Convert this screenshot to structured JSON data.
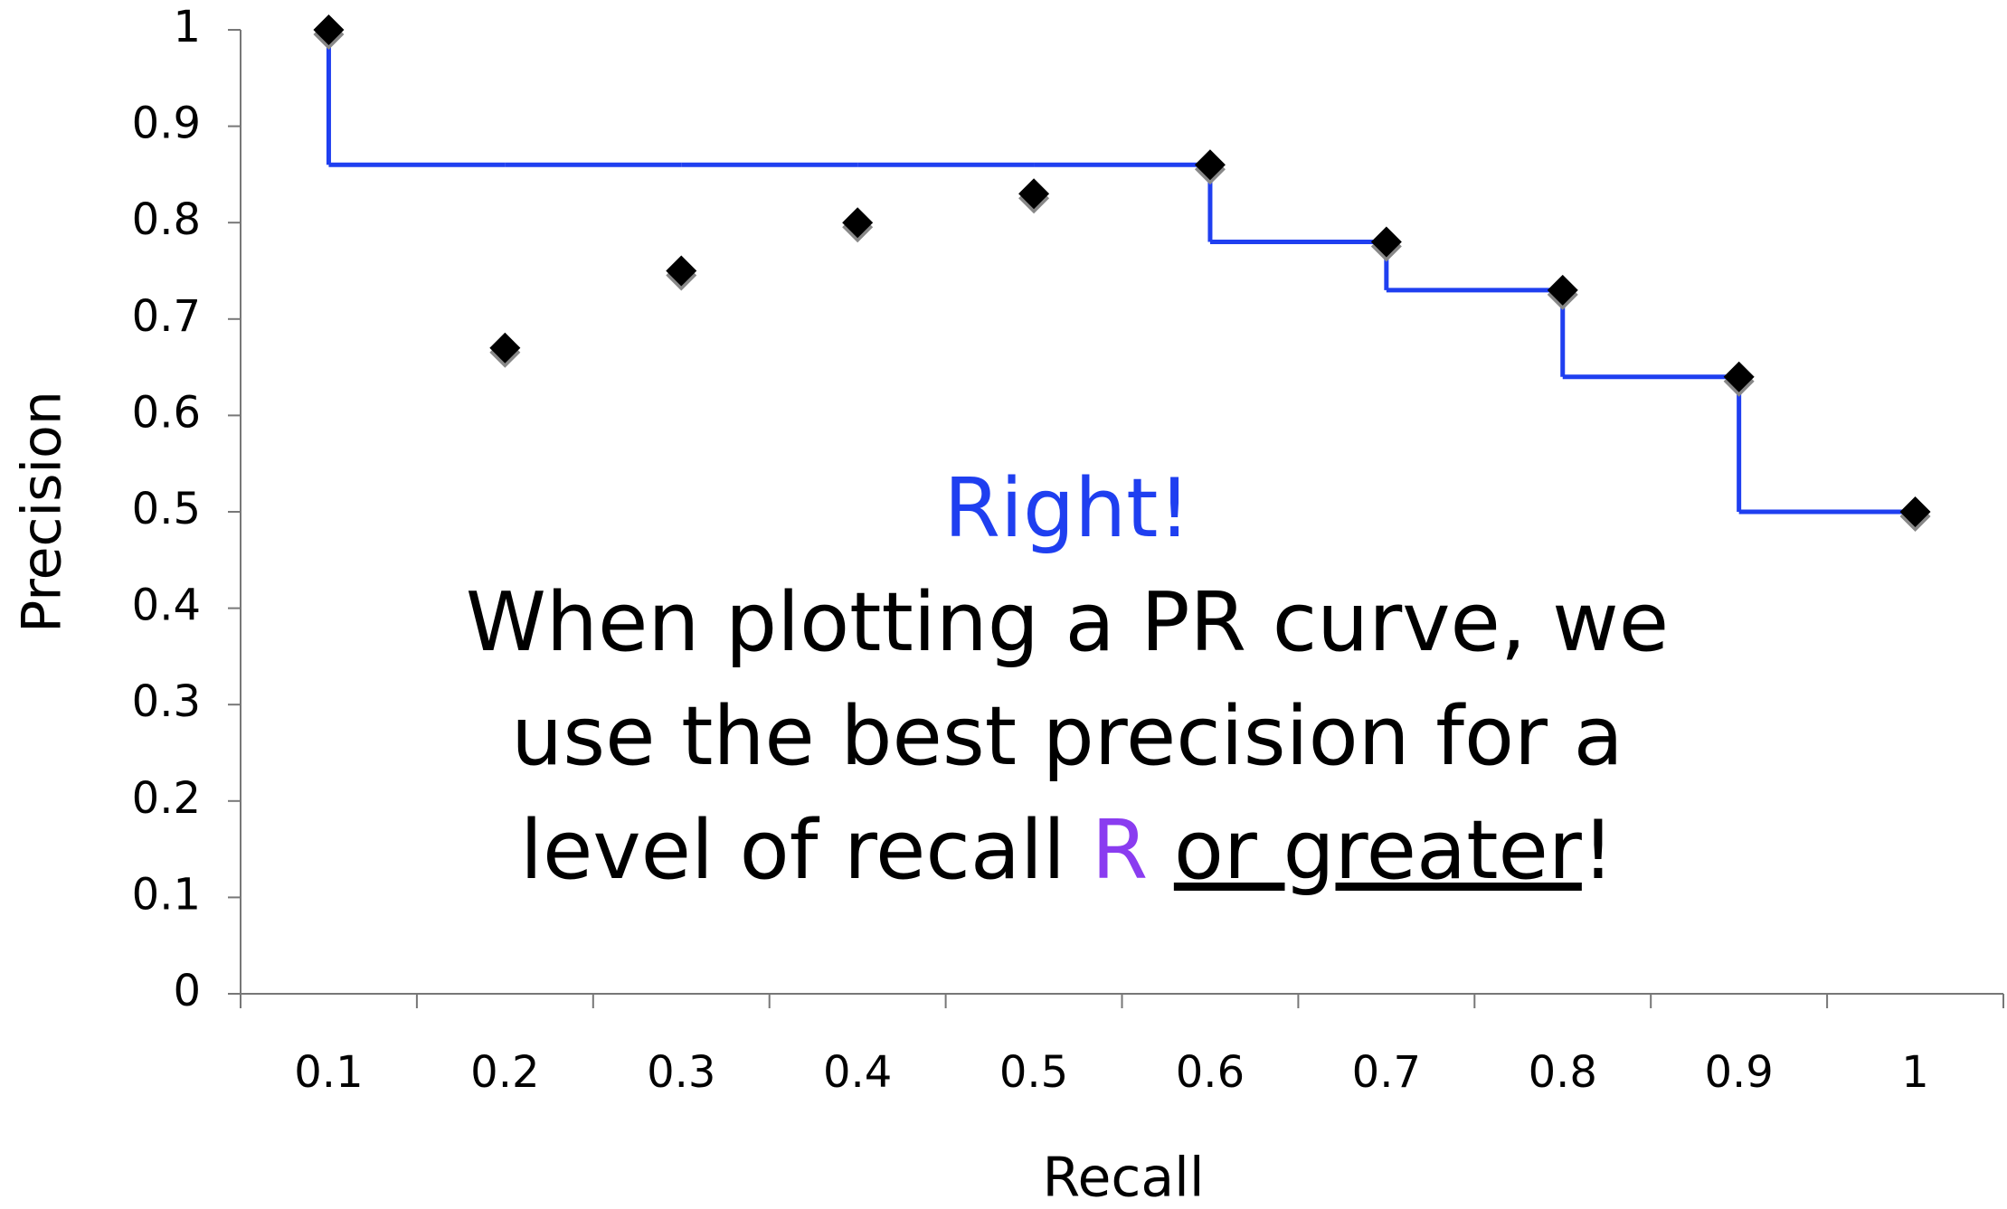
{
  "chart_data": {
    "type": "scatter",
    "xlabel": "Recall",
    "ylabel": "Precision",
    "categories": [
      "0.1",
      "0.2",
      "0.3",
      "0.4",
      "0.5",
      "0.6",
      "0.7",
      "0.8",
      "0.9",
      "1"
    ],
    "series": [
      {
        "values": [
          1,
          0.67,
          0.75,
          0.8,
          0.83,
          0.86,
          0.78,
          0.73,
          0.64,
          0.5
        ],
        "color": "#000000",
        "marker": "diamond"
      },
      {
        "values": [
          1,
          0.86,
          0.86,
          0.86,
          0.86,
          0.86,
          0.78,
          0.73,
          0.64,
          0.5
        ],
        "color": "#1f3ff0",
        "style": "step"
      }
    ],
    "ylim": [
      0,
      1
    ],
    "yticks": [
      0,
      0.1,
      0.2,
      0.3,
      0.4,
      0.5,
      0.6,
      0.7,
      0.8,
      0.9,
      1
    ],
    "annotation": {
      "headline": "Right!",
      "headline_color": "#1f3ff0",
      "lines": [
        "When plotting a PR curve, we",
        "use the best precision for a"
      ],
      "last_line": [
        "level of recall",
        "R",
        "or greater",
        "!"
      ],
      "highlight_color": "#8a3cf0"
    }
  }
}
